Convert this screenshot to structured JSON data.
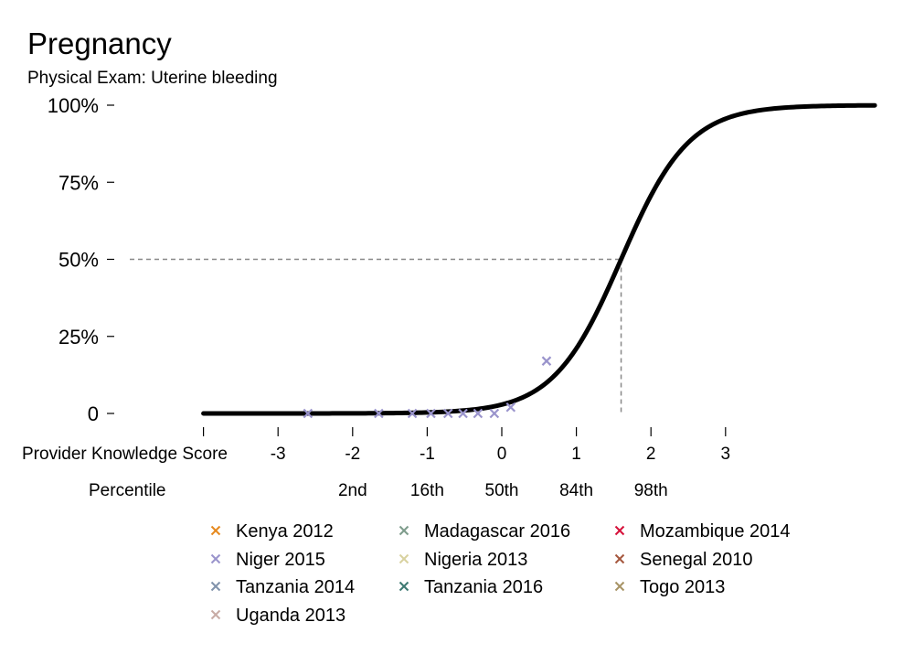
{
  "chart_data": {
    "type": "line",
    "title": "Pregnancy",
    "subtitle": "Physical Exam: Uterine bleeding",
    "xlabel": "Provider Knowledge Score",
    "percentile_label": "Percentile",
    "xlim": [
      -4,
      5
    ],
    "ylim": [
      0,
      1
    ],
    "y_ticks": [
      {
        "value": 1.0,
        "label": "100%"
      },
      {
        "value": 0.75,
        "label": "75%"
      },
      {
        "value": 0.5,
        "label": "50%"
      },
      {
        "value": 0.25,
        "label": "25%"
      },
      {
        "value": 0.0,
        "label": "0"
      }
    ],
    "x_ticks": [
      {
        "value": -3,
        "label": "-3"
      },
      {
        "value": -2,
        "label": "-2"
      },
      {
        "value": -1,
        "label": "-1"
      },
      {
        "value": 0,
        "label": "0"
      },
      {
        "value": 1,
        "label": "1"
      },
      {
        "value": 2,
        "label": "2"
      },
      {
        "value": 3,
        "label": "3"
      }
    ],
    "percentiles": [
      {
        "value": -2,
        "label": "2nd"
      },
      {
        "value": -1,
        "label": "16th"
      },
      {
        "value": 0,
        "label": "50th"
      },
      {
        "value": 1,
        "label": "84th"
      },
      {
        "value": 2,
        "label": "98th"
      }
    ],
    "curve": {
      "midpoint": 1.6,
      "slope": 2.2,
      "color": "#000000"
    },
    "reference": {
      "x": 1.6,
      "y": 0.5
    },
    "points": [
      {
        "series": "Niger 2015",
        "x": -2.6,
        "y": 0.0
      },
      {
        "series": "Niger 2015",
        "x": -1.65,
        "y": 0.0
      },
      {
        "series": "Niger 2015",
        "x": -1.2,
        "y": 0.0
      },
      {
        "series": "Niger 2015",
        "x": -0.95,
        "y": 0.0
      },
      {
        "series": "Niger 2015",
        "x": -0.72,
        "y": 0.0
      },
      {
        "series": "Niger 2015",
        "x": -0.52,
        "y": 0.0
      },
      {
        "series": "Niger 2015",
        "x": -0.32,
        "y": 0.0
      },
      {
        "series": "Niger 2015",
        "x": -0.1,
        "y": 0.0
      },
      {
        "series": "Niger 2015",
        "x": 0.12,
        "y": 0.02
      },
      {
        "series": "Niger 2015",
        "x": 0.6,
        "y": 0.17
      }
    ],
    "legend": [
      {
        "name": "Kenya 2012",
        "color": "#E6891F"
      },
      {
        "name": "Madagascar 2016",
        "color": "#7E9C8C"
      },
      {
        "name": "Mozambique 2014",
        "color": "#D6123B"
      },
      {
        "name": "Niger 2015",
        "color": "#9A94CC"
      },
      {
        "name": "Nigeria 2013",
        "color": "#D8D2A0"
      },
      {
        "name": "Senegal 2010",
        "color": "#A5583E"
      },
      {
        "name": "Tanzania 2014",
        "color": "#8193AB"
      },
      {
        "name": "Tanzania 2016",
        "color": "#3E7A72"
      },
      {
        "name": "Togo 2013",
        "color": "#A89466"
      },
      {
        "name": "Uganda 2013",
        "color": "#C8ACA6"
      }
    ]
  }
}
